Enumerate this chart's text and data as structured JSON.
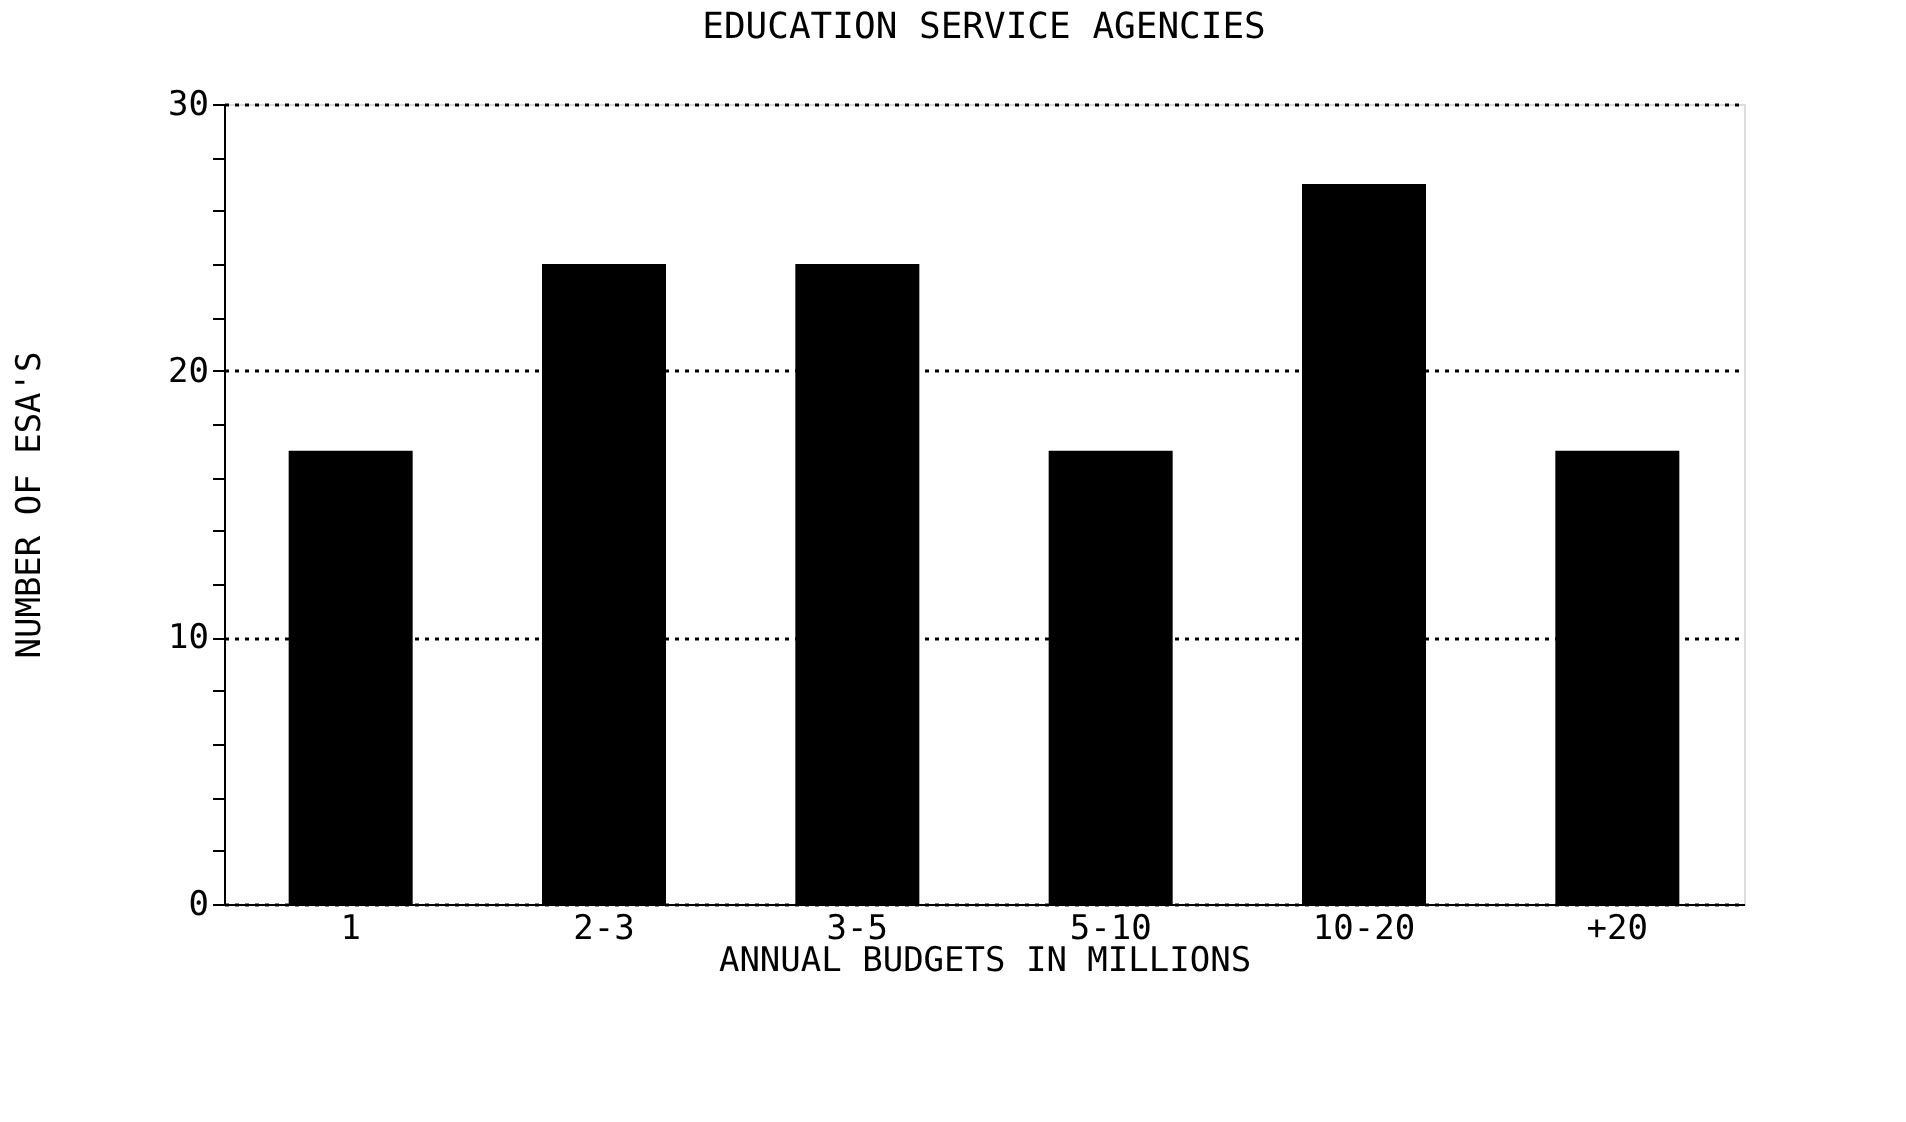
{
  "chart_data": {
    "type": "bar",
    "title": "EDUCATION SERVICE AGENCIES",
    "xlabel": "ANNUAL BUDGETS IN MILLIONS",
    "ylabel": "NUMBER OF ESA'S",
    "categories": [
      "1",
      "2-3",
      "3-5",
      "5-10",
      "10-20",
      "+20"
    ],
    "series": [
      {
        "color": "#000000",
        "values": [
          17,
          24,
          24,
          17,
          27,
          17
        ]
      }
    ],
    "ylim": [
      0,
      30
    ],
    "yticks": [
      0,
      {
        "value": 2,
        "label": null
      },
      {
        "value": 4,
        "label": null
      },
      {
        "value": 6,
        "label": null
      },
      {
        "value": 8,
        "label": null
      },
      10,
      {
        "value": 12,
        "label": null
      },
      {
        "value": 14,
        "label": null
      },
      {
        "value": 16,
        "label": null
      },
      {
        "value": 18,
        "label": null
      },
      20,
      {
        "value": 22,
        "label": null
      },
      {
        "value": 24,
        "label": null
      },
      {
        "value": 26,
        "label": null
      },
      {
        "value": 28,
        "label": null
      },
      30
    ],
    "grid": "y"
  }
}
